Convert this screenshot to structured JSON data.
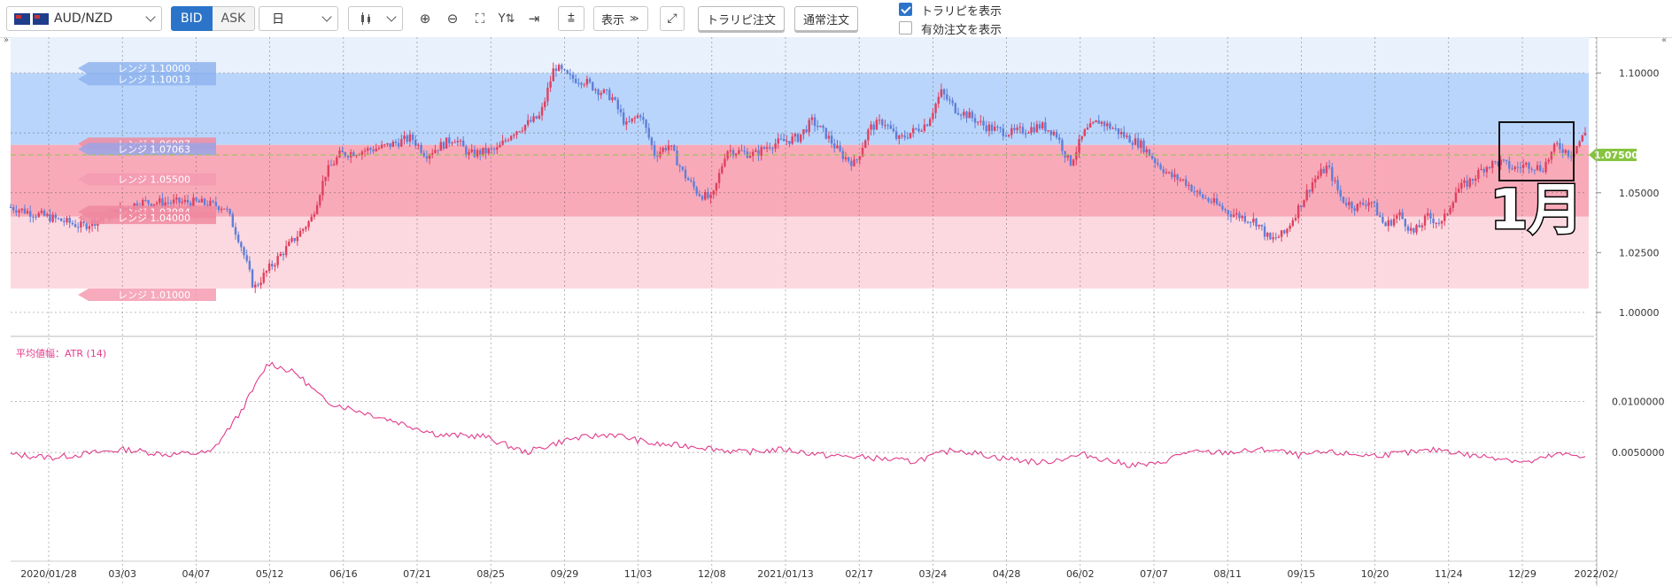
{
  "toolbar": {
    "pair": "AUD/NZD",
    "bid": "BID",
    "ask": "ASK",
    "timeframe": "日",
    "display_label": "表示",
    "trap_order": "トラリピ注文",
    "normal_order": "通常注文",
    "show_trap": "トラリピを表示",
    "show_trap_checked": true,
    "show_active": "有効注文を表示",
    "show_active_checked": false,
    "icons": [
      "candlestick-icon",
      "zoom-in-icon",
      "zoom-out-icon",
      "fit-icon",
      "y-axis-icon",
      "jump-to-latest-icon",
      "add-indicator-icon",
      "fullscreen-icon"
    ]
  },
  "colors": {
    "buy_zone": "#b9d5fb",
    "sell_zone": "#f9aab9",
    "lower_zone": "#fcd9e0",
    "up_candle": "#e0405f",
    "down_candle": "#5f7fd8",
    "atr_line": "#e23c8c",
    "price_marker": "#86c440"
  },
  "ranges": {
    "blue": [
      "レンジ 1.10000",
      "レンジ 1.10013",
      "レンジ 1.07063"
    ],
    "red": [
      "レンジ 1.06987",
      "レンジ 1.05500",
      "レンジ 1.03984",
      "レンジ 1.04000",
      "レンジ 1.01000"
    ]
  },
  "current_price": "1.07500",
  "annotation": "1月",
  "chart_data": [
    {
      "type": "candlestick",
      "series_name": "AUD/NZD",
      "ylim": [
        0.99,
        1.115
      ],
      "y_ticks": [
        "1.10000",
        "1.07500",
        "1.05000",
        "1.02500",
        "1.00000"
      ],
      "x_ticks": [
        "2020/01/28",
        "03/03",
        "04/07",
        "05/12",
        "06/16",
        "07/21",
        "08/25",
        "09/29",
        "11/03",
        "12/08",
        "2021/01/13",
        "02/17",
        "03/24",
        "04/28",
        "06/02",
        "07/07",
        "08/11",
        "09/15",
        "10/20",
        "11/24",
        "12/29",
        "2022/02/"
      ],
      "close_path": [
        [
          0,
          1.044
        ],
        [
          5,
          1.036
        ],
        [
          9,
          1.046
        ],
        [
          13,
          1.046
        ],
        [
          15,
          1.044
        ],
        [
          16,
          1.03
        ],
        [
          17,
          1.01
        ],
        [
          18,
          1.018
        ],
        [
          19,
          1.025
        ],
        [
          21,
          1.039
        ],
        [
          22,
          1.058
        ],
        [
          23,
          1.066
        ],
        [
          26,
          1.069
        ],
        [
          28,
          1.073
        ],
        [
          29,
          1.066
        ],
        [
          31,
          1.073
        ],
        [
          32,
          1.066
        ],
        [
          34,
          1.068
        ],
        [
          35,
          1.075
        ],
        [
          37,
          1.082
        ],
        [
          38,
          1.103
        ],
        [
          39,
          1.098
        ],
        [
          40,
          1.097
        ],
        [
          41,
          1.093
        ],
        [
          42,
          1.09
        ],
        [
          43,
          1.078
        ],
        [
          44,
          1.083
        ],
        [
          45,
          1.066
        ],
        [
          46,
          1.07
        ],
        [
          47,
          1.058
        ],
        [
          48,
          1.05
        ],
        [
          49,
          1.047
        ],
        [
          50,
          1.068
        ],
        [
          52,
          1.066
        ],
        [
          53,
          1.07
        ],
        [
          55,
          1.073
        ],
        [
          56,
          1.08
        ],
        [
          57,
          1.074
        ],
        [
          58,
          1.066
        ],
        [
          59,
          1.062
        ],
        [
          60,
          1.077
        ],
        [
          61,
          1.08
        ],
        [
          62,
          1.072
        ],
        [
          64,
          1.079
        ],
        [
          65,
          1.092
        ],
        [
          66,
          1.085
        ],
        [
          67,
          1.082
        ],
        [
          68,
          1.078
        ],
        [
          69,
          1.076
        ],
        [
          70,
          1.075
        ],
        [
          72,
          1.078
        ],
        [
          73,
          1.075
        ],
        [
          74,
          1.062
        ],
        [
          75,
          1.075
        ],
        [
          76,
          1.08
        ],
        [
          77,
          1.077
        ],
        [
          78,
          1.073
        ],
        [
          79,
          1.07
        ],
        [
          80,
          1.063
        ],
        [
          81,
          1.057
        ],
        [
          82,
          1.055
        ],
        [
          83,
          1.049
        ],
        [
          84,
          1.046
        ],
        [
          85,
          1.042
        ],
        [
          86,
          1.04
        ],
        [
          87,
          1.038
        ],
        [
          88,
          1.03
        ],
        [
          89,
          1.033
        ],
        [
          90,
          1.044
        ],
        [
          91,
          1.055
        ],
        [
          92,
          1.061
        ],
        [
          93,
          1.047
        ],
        [
          94,
          1.044
        ],
        [
          95,
          1.047
        ],
        [
          96,
          1.036
        ],
        [
          97,
          1.041
        ],
        [
          98,
          1.033
        ],
        [
          99,
          1.04
        ],
        [
          100,
          1.037
        ],
        [
          101,
          1.051
        ],
        [
          102,
          1.055
        ],
        [
          103,
          1.061
        ],
        [
          104,
          1.063
        ],
        [
          105,
          1.06
        ],
        [
          106,
          1.062
        ],
        [
          107,
          1.06
        ],
        [
          108,
          1.07
        ],
        [
          109,
          1.066
        ],
        [
          110,
          1.075
        ]
      ],
      "weeks": 110
    },
    {
      "type": "line",
      "name": "平均値幅：ATR (14)",
      "y_ticks": [
        "0.0100000",
        "0.0050000"
      ],
      "ylim": [
        0.0025,
        0.0155
      ],
      "path": [
        [
          0,
          0.0048
        ],
        [
          3,
          0.0045
        ],
        [
          6,
          0.005
        ],
        [
          8,
          0.0053
        ],
        [
          11,
          0.0048
        ],
        [
          14,
          0.005
        ],
        [
          16,
          0.0088
        ],
        [
          18,
          0.0138
        ],
        [
          20,
          0.0127
        ],
        [
          22,
          0.01
        ],
        [
          24,
          0.0092
        ],
        [
          27,
          0.008
        ],
        [
          30,
          0.0067
        ],
        [
          33,
          0.0066
        ],
        [
          36,
          0.005
        ],
        [
          39,
          0.0063
        ],
        [
          42,
          0.0068
        ],
        [
          45,
          0.0058
        ],
        [
          48,
          0.0056
        ],
        [
          51,
          0.005
        ],
        [
          54,
          0.0053
        ],
        [
          57,
          0.0047
        ],
        [
          60,
          0.0045
        ],
        [
          63,
          0.0041
        ],
        [
          66,
          0.0053
        ],
        [
          69,
          0.0045
        ],
        [
          72,
          0.004
        ],
        [
          75,
          0.0048
        ],
        [
          78,
          0.0038
        ],
        [
          80,
          0.0038
        ],
        [
          82,
          0.005
        ],
        [
          85,
          0.005
        ],
        [
          88,
          0.0053
        ],
        [
          90,
          0.0047
        ],
        [
          92,
          0.005
        ],
        [
          95,
          0.0047
        ],
        [
          98,
          0.005
        ],
        [
          100,
          0.0053
        ],
        [
          102,
          0.0047
        ],
        [
          104,
          0.0045
        ],
        [
          106,
          0.004
        ],
        [
          108,
          0.0048
        ],
        [
          110,
          0.0047
        ]
      ]
    }
  ]
}
